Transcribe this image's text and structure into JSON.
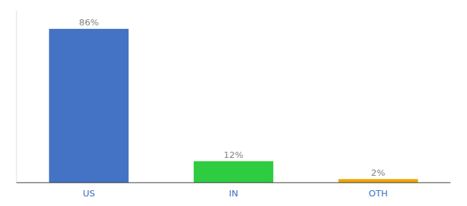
{
  "chart_data": {
    "type": "bar",
    "categories": [
      "US",
      "IN",
      "OTH"
    ],
    "values": [
      86,
      12,
      2
    ],
    "value_labels": [
      "86%",
      "12%",
      "2%"
    ],
    "colors": [
      "#4472c4",
      "#2ecc40",
      "#f0a500"
    ],
    "ylim": [
      0,
      96
    ],
    "data_labels": true,
    "tick_labels": "x",
    "grid": false
  }
}
